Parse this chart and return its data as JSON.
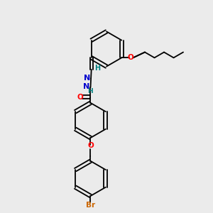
{
  "background_color": "#ebebeb",
  "bond_color": "#000000",
  "atom_colors": {
    "O": "#ff0000",
    "N": "#0000cd",
    "Br": "#cc6600",
    "H": "#008080",
    "C": "#000000"
  },
  "figsize": [
    3.0,
    3.0
  ],
  "dpi": 100
}
